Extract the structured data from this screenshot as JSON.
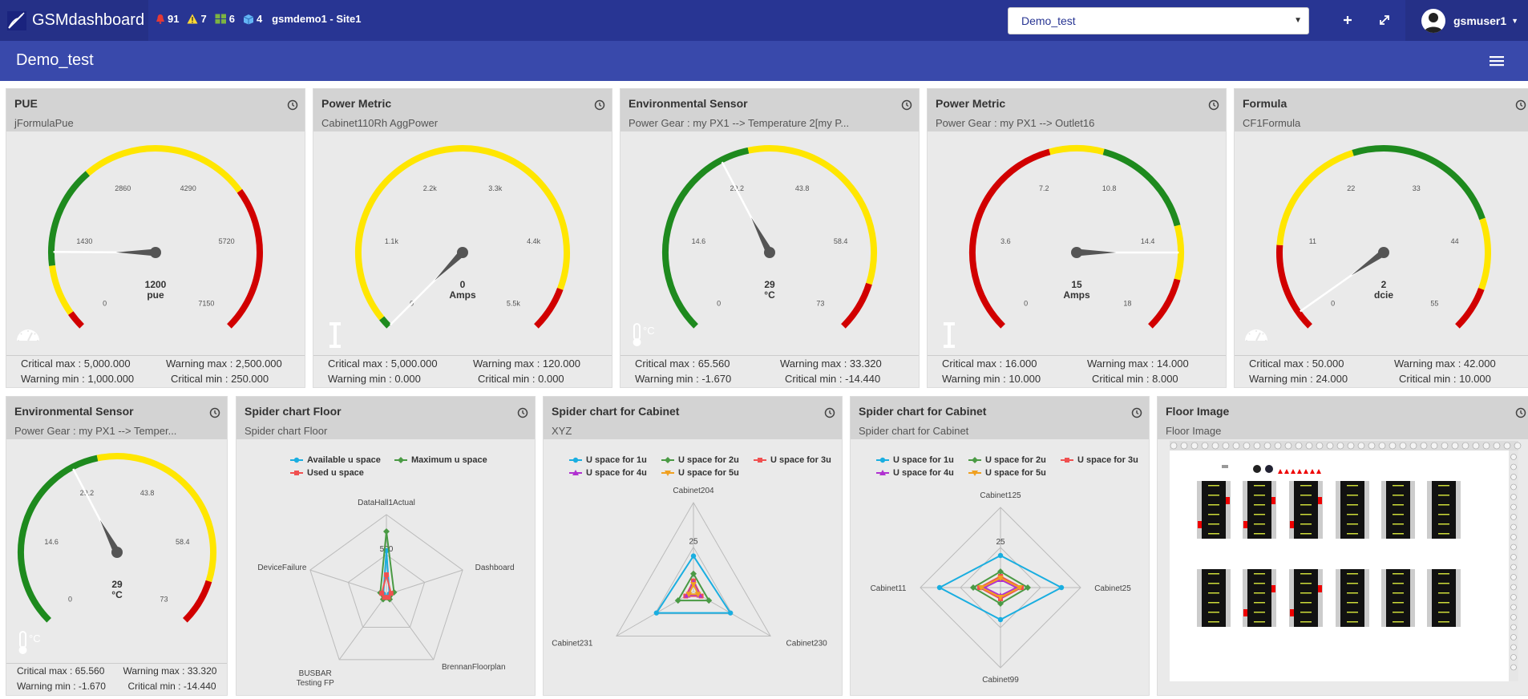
{
  "app": {
    "name": "GSMdashboard"
  },
  "alerts": {
    "critical": "91",
    "warning": "7",
    "devices": "6",
    "cabinets": "4",
    "site": "gsmdemo1 - Site1"
  },
  "dashboard_select": {
    "value": "Demo_test"
  },
  "user": {
    "name": "gsmuser1"
  },
  "page": {
    "title": "Demo_test"
  },
  "colors": {
    "topbar": "#283593",
    "subbar": "#3949ab",
    "green": "#1e8a1e",
    "yellow": "#ffe600",
    "red": "#d10000"
  },
  "gauges": [
    {
      "title": "PUE",
      "subtitle": "jFormulaPue",
      "icon": "speedometer-icon",
      "ticks": [
        "0",
        "1430",
        "2860",
        "4290",
        "5720",
        "7150"
      ],
      "value": "1200",
      "unit": "pue",
      "chart_data": {
        "type": "gauge",
        "min": 0,
        "max": 7150,
        "value": 1200,
        "bands": [
          {
            "from": 0,
            "to": 250,
            "color": "red"
          },
          {
            "from": 250,
            "to": 1000,
            "color": "yellow"
          },
          {
            "from": 1000,
            "to": 2500,
            "color": "green"
          },
          {
            "from": 2500,
            "to": 5000,
            "color": "yellow"
          },
          {
            "from": 5000,
            "to": 7150,
            "color": "red"
          }
        ]
      },
      "thresholds": {
        "critical_max": "Critical max : 5,000.000",
        "warning_max": "Warning max : 2,500.000",
        "warning_min": "Warning min : 1,000.000",
        "critical_min": "Critical min : 250.000"
      }
    },
    {
      "title": "Power Metric",
      "subtitle": "Cabinet110Rh AggPower",
      "icon": "current-icon",
      "ticks": [
        "0",
        "1.1k",
        "2.2k",
        "3.3k",
        "4.4k",
        "5.5k"
      ],
      "value": "0",
      "unit": "Amps",
      "chart_data": {
        "type": "gauge",
        "min": 0,
        "max": 5500,
        "value": 0,
        "bands": [
          {
            "from": 0,
            "to": 120,
            "color": "green"
          },
          {
            "from": 120,
            "to": 5000,
            "color": "yellow"
          },
          {
            "from": 5000,
            "to": 5500,
            "color": "red"
          }
        ]
      },
      "thresholds": {
        "critical_max": "Critical max : 5,000.000",
        "warning_max": "Warning max : 120.000",
        "warning_min": "Warning min : 0.000",
        "critical_min": "Critical min : 0.000"
      }
    },
    {
      "title": "Environmental Sensor",
      "subtitle": "Power Gear : my PX1 --> Temperature 2[my P...",
      "icon": "thermometer-icon",
      "ticks": [
        "0",
        "14.6",
        "29.2",
        "43.8",
        "58.4",
        "73"
      ],
      "value": "29",
      "unit": "°C",
      "chart_data": {
        "type": "gauge",
        "min": 0,
        "max": 73,
        "value": 29,
        "bands": [
          {
            "from": 0,
            "to": 33.32,
            "color": "green"
          },
          {
            "from": 33.32,
            "to": 65.56,
            "color": "yellow"
          },
          {
            "from": 65.56,
            "to": 73,
            "color": "red"
          }
        ]
      },
      "thresholds": {
        "critical_max": "Critical max : 65.560",
        "warning_max": "Warning max : 33.320",
        "warning_min": "Warning min : -1.670",
        "critical_min": "Critical min : -14.440"
      }
    },
    {
      "title": "Power Metric",
      "subtitle": "Power Gear : my PX1 --> Outlet16",
      "icon": "current-icon",
      "ticks": [
        "0",
        "3.6",
        "7.2",
        "10.8",
        "14.4",
        "18"
      ],
      "value": "15",
      "unit": "Amps",
      "chart_data": {
        "type": "gauge",
        "min": 0,
        "max": 18,
        "value": 15,
        "bands": [
          {
            "from": 0,
            "to": 8,
            "color": "red"
          },
          {
            "from": 8,
            "to": 10,
            "color": "yellow"
          },
          {
            "from": 10,
            "to": 14,
            "color": "green"
          },
          {
            "from": 14,
            "to": 16,
            "color": "yellow"
          },
          {
            "from": 16,
            "to": 18,
            "color": "red"
          }
        ]
      },
      "thresholds": {
        "critical_max": "Critical max : 16.000",
        "warning_max": "Warning max : 14.000",
        "warning_min": "Warning min : 10.000",
        "critical_min": "Critical min : 8.000"
      }
    },
    {
      "title": "Formula",
      "subtitle": "CF1Formula",
      "icon": "speedometer-icon",
      "ticks": [
        "0",
        "11",
        "22",
        "33",
        "44",
        "55"
      ],
      "value": "2",
      "unit": "dcie",
      "chart_data": {
        "type": "gauge",
        "min": 0,
        "max": 55,
        "value": 2,
        "bands": [
          {
            "from": 0,
            "to": 10,
            "color": "red"
          },
          {
            "from": 10,
            "to": 24,
            "color": "yellow"
          },
          {
            "from": 24,
            "to": 42,
            "color": "green"
          },
          {
            "from": 42,
            "to": 50,
            "color": "yellow"
          },
          {
            "from": 50,
            "to": 55,
            "color": "red"
          }
        ]
      },
      "thresholds": {
        "critical_max": "Critical max : 50.000",
        "warning_max": "Warning max : 42.000",
        "warning_min": "Warning min : 24.000",
        "critical_min": "Critical min : 10.000"
      }
    },
    {
      "title": "Environmental Sensor",
      "subtitle": "Power Gear : my PX1 --> Temper...",
      "icon": "thermometer-icon",
      "ticks": [
        "0",
        "14.6",
        "29.2",
        "43.8",
        "58.4",
        "73"
      ],
      "value": "29",
      "unit": "°C",
      "chart_data": {
        "type": "gauge",
        "min": 0,
        "max": 73,
        "value": 29,
        "bands": [
          {
            "from": 0,
            "to": 33.32,
            "color": "green"
          },
          {
            "from": 33.32,
            "to": 65.56,
            "color": "yellow"
          },
          {
            "from": 65.56,
            "to": 73,
            "color": "red"
          }
        ]
      },
      "thresholds": {
        "critical_max": "Critical max : 65.560",
        "warning_max": "Warning max : 33.320",
        "warning_min": "Warning min : -1.670",
        "critical_min": "Critical min : -14.440"
      }
    }
  ],
  "spiders": [
    {
      "title": "Spider chart Floor",
      "subtitle": "Spider chart Floor",
      "tick": "500",
      "chart_data": {
        "type": "radar",
        "max": 1000,
        "categories": [
          "DataHall1Actual",
          "Dashboard",
          "BrennanFloorplan",
          "BUSBAR Testing FP",
          "DeviceFailure"
        ],
        "series": [
          {
            "name": "Available u space",
            "color": "#1aaee0",
            "values": [
              550,
              40,
              30,
              40,
              40
            ]
          },
          {
            "name": "Maximum u space",
            "color": "#4a9a44",
            "values": [
              790,
              100,
              70,
              70,
              80
            ]
          },
          {
            "name": "Used u space",
            "color": "#f05050",
            "values": [
              250,
              60,
              40,
              40,
              60
            ]
          }
        ]
      }
    },
    {
      "title": "Spider chart for Cabinet",
      "subtitle": "XYZ",
      "tick": "25",
      "chart_data": {
        "type": "radar",
        "max": 50,
        "categories": [
          "Cabinet204",
          "Cabinet230",
          "Cabinet231"
        ],
        "series": [
          {
            "name": "U space for 1u",
            "color": "#1aaee0",
            "values": [
              20,
              24,
              24
            ]
          },
          {
            "name": "U space for 2u",
            "color": "#4a9a44",
            "values": [
              10,
              10,
              10
            ]
          },
          {
            "name": "U space for 3u",
            "color": "#f05050",
            "values": [
              6,
              5,
              5
            ]
          },
          {
            "name": "U space for 4u",
            "color": "#b030d0",
            "values": [
              5,
              4,
              4
            ]
          },
          {
            "name": "U space for 5u",
            "color": "#f0a020",
            "values": [
              4,
              3,
              3
            ]
          }
        ]
      }
    },
    {
      "title": "Spider chart for Cabinet",
      "subtitle": "Spider chart for Cabinet",
      "tick": "25",
      "chart_data": {
        "type": "radar",
        "max": 50,
        "categories": [
          "Cabinet125",
          "Cabinet25",
          "Cabinet99",
          "Cabinet11"
        ],
        "series": [
          {
            "name": "U space for 1u",
            "color": "#1aaee0",
            "values": [
              20,
              38,
              20,
              38
            ]
          },
          {
            "name": "U space for 2u",
            "color": "#4a9a44",
            "values": [
              10,
              17,
              10,
              17
            ]
          },
          {
            "name": "U space for 3u",
            "color": "#f05050",
            "values": [
              7,
              13,
              7,
              13
            ]
          },
          {
            "name": "U space for 4u",
            "color": "#b030d0",
            "values": [
              5,
              10,
              5,
              10
            ]
          },
          {
            "name": "U space for 5u",
            "color": "#f0a020",
            "values": [
              6,
              12,
              6,
              12
            ]
          }
        ]
      }
    }
  ],
  "floor": {
    "title": "Floor Image",
    "subtitle": "Floor Image"
  }
}
